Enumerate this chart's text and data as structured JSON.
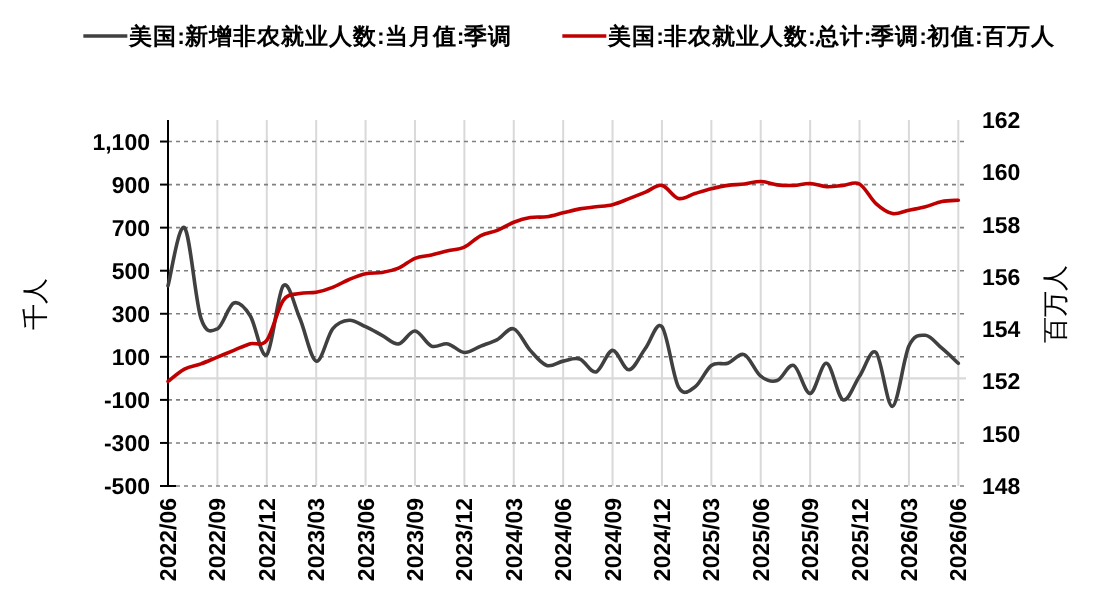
{
  "chart_data": {
    "type": "line",
    "ylabel": "千人",
    "y2label": "百万人",
    "grid": true,
    "legend": "top",
    "x": [
      "2022-06",
      "2022-07",
      "2022-08",
      "2022-09",
      "2022-10",
      "2022-11",
      "2022-12",
      "2023-01",
      "2023-02",
      "2023-03",
      "2023-04",
      "2023-05",
      "2023-06",
      "2023-07",
      "2023-08",
      "2023-09",
      "2023-10",
      "2023-11",
      "2023-12",
      "2024-01",
      "2024-02",
      "2024-03",
      "2024-04",
      "2024-05",
      "2024-06",
      "2024-07",
      "2024-08",
      "2024-09",
      "2024-10",
      "2024-11",
      "2024-12",
      "2025-01",
      "2025-02",
      "2025-03",
      "2025-04",
      "2025-05",
      "2025-06",
      "2025-07",
      "2025-08",
      "2025-09",
      "2025-10",
      "2025-11",
      "2025-12",
      "2026-01",
      "2026-02",
      "2026-03",
      "2026-04",
      "2026-05",
      "2026-06"
    ],
    "series": [
      {
        "name": "美国:新增非农就业人数:当月值:季调",
        "color": "#404040",
        "values": [
          430,
          700,
          280,
          230,
          350,
          290,
          110,
          430,
          280,
          80,
          230,
          270,
          240,
          200,
          160,
          220,
          150,
          160,
          120,
          150,
          180,
          230,
          130,
          60,
          80,
          90,
          30,
          130,
          40,
          140,
          240,
          -40,
          -40,
          60,
          70,
          110,
          10,
          -10,
          60,
          -70,
          70,
          -100,
          10,
          120,
          -130,
          150,
          200,
          140,
          70
        ]
      },
      {
        "name": "美国:非农就业人数:总计:季调:初值:百万人",
        "color": "#c00000",
        "axis": "y2",
        "values": [
          152.0,
          152.47,
          152.67,
          152.93,
          153.19,
          153.44,
          153.57,
          155.1,
          155.36,
          155.41,
          155.6,
          155.9,
          156.12,
          156.17,
          156.33,
          156.71,
          156.84,
          157.0,
          157.14,
          157.58,
          157.78,
          158.09,
          158.27,
          158.3,
          158.45,
          158.6,
          158.68,
          158.76,
          158.99,
          159.24,
          159.5,
          159.0,
          159.19,
          159.37,
          159.5,
          159.55,
          159.65,
          159.52,
          159.5,
          159.57,
          159.45,
          159.5,
          159.55,
          158.8,
          158.42,
          158.55,
          158.68,
          158.88,
          158.93
        ]
      }
    ],
    "xlim": [
      "2022-06",
      "2026-06-15"
    ],
    "xticks": [
      {
        "value": "2022-06",
        "label": "2022/06"
      },
      {
        "value": "2022-09",
        "label": "2022/09"
      },
      {
        "value": "2022-12",
        "label": "2022/12"
      },
      {
        "value": "2023-03",
        "label": "2023/03"
      },
      {
        "value": "2023-06",
        "label": "2023/06"
      },
      {
        "value": "2023-09",
        "label": "2023/09"
      },
      {
        "value": "2023-12",
        "label": "2023/12"
      },
      {
        "value": "2024-03",
        "label": "2024/03"
      },
      {
        "value": "2024-06",
        "label": "2024/06"
      },
      {
        "value": "2024-09",
        "label": "2024/09"
      },
      {
        "value": "2024-12",
        "label": "2024/12"
      },
      {
        "value": "2025-03",
        "label": "2025/03"
      },
      {
        "value": "2025-06",
        "label": "2025/06"
      },
      {
        "value": "2025-09",
        "label": "2025/09"
      },
      {
        "value": "2025-12",
        "label": "2025/12"
      },
      {
        "value": "2026-03",
        "label": "2026/03"
      },
      {
        "value": "2026-06",
        "label": "2026/06"
      }
    ],
    "ylim": [
      -500,
      1200
    ],
    "yticks": [
      -500,
      -300,
      -100,
      100,
      300,
      500,
      700,
      900,
      {
        "value": 1100,
        "label": "1,100"
      }
    ],
    "y2lim": [
      148,
      162
    ],
    "y2ticks": [
      148,
      150,
      152,
      154,
      156,
      158,
      160,
      162
    ]
  }
}
